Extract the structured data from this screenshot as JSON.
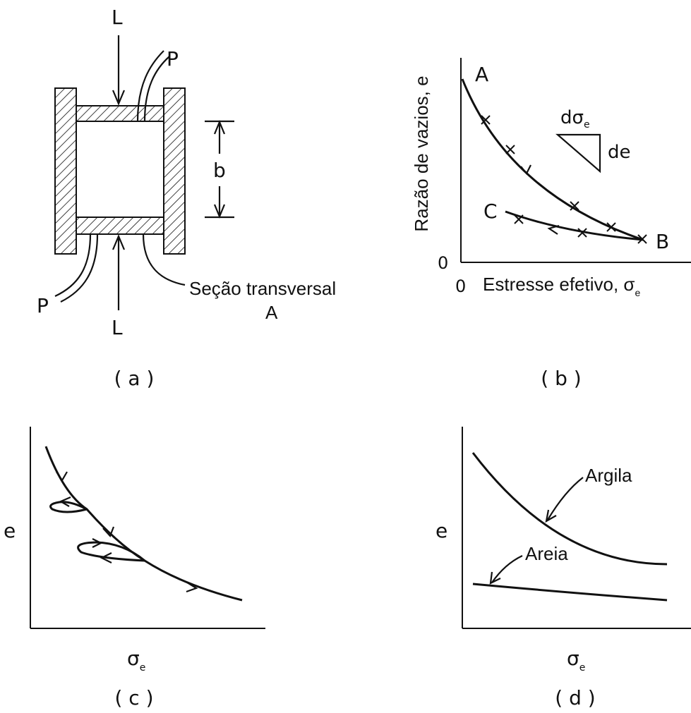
{
  "panel_a": {
    "label_L_top": "L",
    "label_L_bottom": "L",
    "label_P_top": "P",
    "label_P_bottom": "P",
    "label_b": "b",
    "section_line1": "Seção transversal",
    "section_line2": "A",
    "caption": "( a )"
  },
  "panel_b": {
    "ylabel": "Razão de vazios, e",
    "xlabel": "Estresse efetivo, σ",
    "xlabel_sub": "e",
    "x_origin": "0",
    "y_origin": "0",
    "point_A": "A",
    "point_B": "B",
    "point_C": "C",
    "slope_top": "dσ",
    "slope_top_sub": "e",
    "slope_side": "de",
    "caption": "( b )"
  },
  "panel_c": {
    "ylabel": "e",
    "xlabel": "σ",
    "xlabel_sub": "e",
    "caption": "( c )"
  },
  "panel_d": {
    "ylabel": "e",
    "xlabel": "σ",
    "xlabel_sub": "e",
    "label_clay": "Argila",
    "label_sand": "Areia",
    "caption": "( d )"
  },
  "colors": {
    "ink": "#111111",
    "background": "#ffffff"
  }
}
